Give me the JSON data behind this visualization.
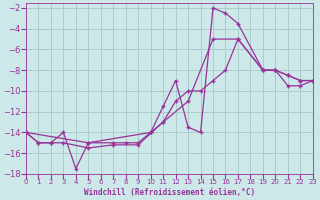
{
  "xlabel": "Windchill (Refroidissement éolien,°C)",
  "bg_color": "#cce8e8",
  "grid_color": "#aacccc",
  "line_color": "#993399",
  "xlim": [
    0,
    23
  ],
  "ylim": [
    -18,
    -1.5
  ],
  "xticks": [
    0,
    1,
    2,
    3,
    4,
    5,
    6,
    7,
    8,
    9,
    10,
    11,
    12,
    13,
    14,
    15,
    16,
    17,
    18,
    19,
    20,
    21,
    22,
    23
  ],
  "yticks": [
    -18,
    -16,
    -14,
    -12,
    -10,
    -8,
    -6,
    -4,
    -2
  ],
  "line1_x": [
    0,
    1,
    2,
    3,
    4,
    5,
    7,
    8,
    9,
    10,
    11,
    12,
    13,
    14,
    15,
    16,
    17,
    19,
    20,
    21,
    22,
    23
  ],
  "line1_y": [
    -14,
    -15,
    -15,
    -14,
    -17.5,
    -15,
    -15,
    -15,
    -15,
    -14,
    -11.5,
    -9,
    -13.5,
    -14,
    -2,
    -2.5,
    -3.5,
    -8,
    -8,
    -8.5,
    -9,
    -9
  ],
  "line2_x": [
    0,
    1,
    2,
    3,
    5,
    7,
    9,
    11,
    13,
    15,
    17,
    19,
    20,
    21,
    22,
    23
  ],
  "line2_y": [
    -14,
    -15,
    -15,
    -15,
    -15.5,
    -15.2,
    -15.2,
    -13,
    -11,
    -5,
    -5,
    -8,
    -8,
    -8.5,
    -9,
    -9
  ],
  "line3_x": [
    0,
    5,
    10,
    11,
    12,
    13,
    14,
    15,
    16,
    17,
    19,
    20,
    21,
    22,
    23
  ],
  "line3_y": [
    -14,
    -15,
    -14,
    -13,
    -11,
    -10,
    -10,
    -9,
    -8,
    -5,
    -8,
    -8,
    -9.5,
    -9.5,
    -9
  ],
  "line4_x": [
    3,
    4,
    5
  ],
  "line4_y": [
    -15,
    -17.5,
    -15.5
  ]
}
